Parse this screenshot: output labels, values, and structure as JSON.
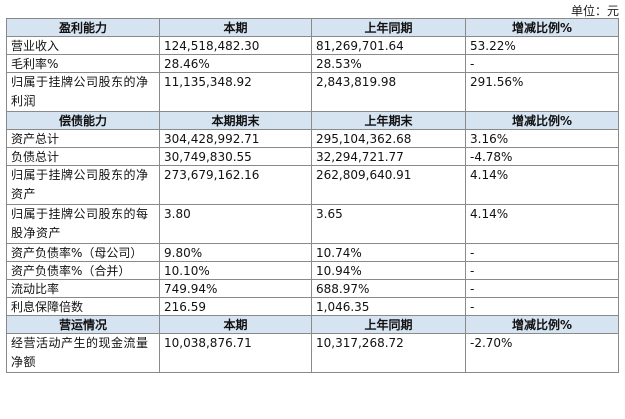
{
  "unit_label": "单位：元",
  "sections": [
    {
      "headers": [
        "盈利能力",
        "本期",
        "上年同期",
        "增减比例%"
      ],
      "rows": [
        [
          "营业收入",
          "124,518,482.30",
          "81,269,701.64",
          "53.22%"
        ],
        [
          "毛利率%",
          "28.46%",
          "28.53%",
          "-"
        ],
        [
          "归属于挂牌公司股东的净利润",
          "11,135,348.92",
          "2,843,819.98",
          "291.56%"
        ]
      ]
    },
    {
      "headers": [
        "偿债能力",
        "本期期末",
        "上年期末",
        "增减比例%"
      ],
      "rows": [
        [
          "资产总计",
          "304,428,992.71",
          "295,104,362.68",
          "3.16%"
        ],
        [
          "负债总计",
          "30,749,830.55",
          "32,294,721.77",
          "-4.78%"
        ],
        [
          "归属于挂牌公司股东的净资产",
          "273,679,162.16",
          "262,809,640.91",
          "4.14%"
        ],
        [
          "归属于挂牌公司股东的每股净资产",
          "3.80",
          "3.65",
          "4.14%"
        ],
        [
          "资产负债率%（母公司）",
          "9.80%",
          "10.74%",
          "-"
        ],
        [
          "资产负债率%（合并）",
          "10.10%",
          "10.94%",
          "-"
        ],
        [
          "流动比率",
          "749.94%",
          "688.97%",
          "-"
        ],
        [
          "利息保障倍数",
          "216.59",
          "1,046.35",
          "-"
        ]
      ]
    },
    {
      "headers": [
        "营运情况",
        "本期",
        "上年同期",
        "增减比例%"
      ],
      "rows": [
        [
          "经营活动产生的现金流量净额",
          "10,038,876.71",
          "10,317,268.72",
          "-2.70%"
        ]
      ]
    }
  ]
}
